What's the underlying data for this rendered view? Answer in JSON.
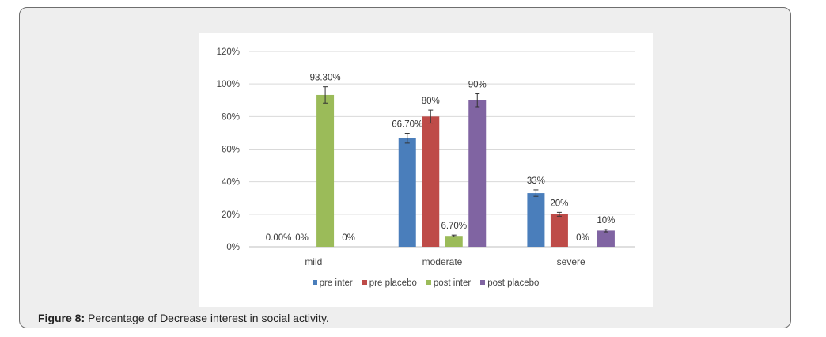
{
  "caption": {
    "lead": "Figure 8:",
    "text": " Percentage of Decrease interest in social activity."
  },
  "chart_data": {
    "type": "bar",
    "categories": [
      "mild",
      "moderate",
      "severe"
    ],
    "yticks": [
      "0%",
      "20%",
      "40%",
      "60%",
      "80%",
      "100%",
      "120%"
    ],
    "ylim": [
      0,
      120
    ],
    "grid": true,
    "legend_position": "bottom",
    "series": [
      {
        "name": "pre inter",
        "color": "#4a7ebb",
        "values": [
          0,
          66.7,
          33
        ],
        "labels": [
          "0.00%",
          "66.70%",
          "33%"
        ],
        "errors": [
          0,
          3,
          2
        ]
      },
      {
        "name": "pre placebo",
        "color": "#be4b48",
        "values": [
          0,
          80,
          20
        ],
        "labels": [
          "0%",
          "80%",
          "20%"
        ],
        "errors": [
          0,
          4,
          1.2
        ]
      },
      {
        "name": "post inter",
        "color": "#9bbb59",
        "values": [
          93.3,
          6.7,
          0
        ],
        "labels": [
          "93.30%",
          "6.70%",
          "0%"
        ],
        "errors": [
          5,
          0.5,
          0
        ]
      },
      {
        "name": "post placebo",
        "color": "#8064a2",
        "values": [
          0,
          90,
          10
        ],
        "labels": [
          "0%",
          "90%",
          "10%"
        ],
        "errors": [
          0,
          4,
          0.8
        ]
      }
    ]
  }
}
